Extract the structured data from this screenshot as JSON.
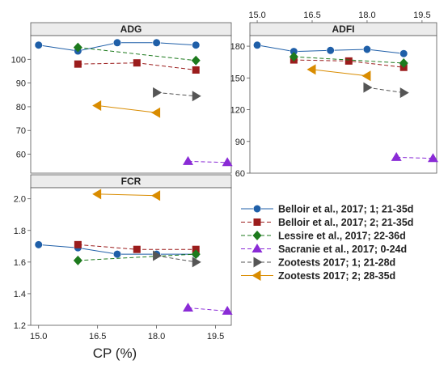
{
  "xlabel": "CP (%)",
  "legend": [
    {
      "name": "Belloir et al., 2017; 1; 21-35d",
      "color": "#1f5fa8",
      "marker": "circle",
      "dash": false
    },
    {
      "name": "Belloir et al., 2017; 2; 21-35d",
      "color": "#9b1c1c",
      "marker": "square",
      "dash": true
    },
    {
      "name": "Lessire et al., 2017; 22-36d",
      "color": "#1d7a1d",
      "marker": "diamond",
      "dash": true
    },
    {
      "name": "Sacranie et al., 2017; 0-24d",
      "color": "#8a2bd6",
      "marker": "triangle-up",
      "dash": true
    },
    {
      "name": "Zootests 2017; 1; 21-28d",
      "color": "#555555",
      "marker": "triangle-right",
      "dash": true
    },
    {
      "name": "Zootests 2017; 2; 28-35d",
      "color": "#d98c00",
      "marker": "triangle-left",
      "dash": false
    }
  ],
  "chart_data": [
    {
      "type": "line",
      "title": "ADG",
      "xlabel": "CP (%)",
      "ylabel": "",
      "xlim": [
        14.8,
        19.9
      ],
      "ylim": [
        52,
        110
      ],
      "xticks": [
        "15.0",
        "16.5",
        "18.0",
        "19.5"
      ],
      "yticks": [
        60,
        70,
        80,
        90,
        100
      ],
      "series": [
        {
          "name": "Belloir et al., 2017; 1; 21-35d",
          "x": [
            15.0,
            16.0,
            17.0,
            18.0,
            19.0
          ],
          "y": [
            106,
            103.5,
            107,
            107,
            106
          ]
        },
        {
          "name": "Belloir et al., 2017; 2; 21-35d",
          "x": [
            16.0,
            17.5,
            19.0
          ],
          "y": [
            98,
            98.5,
            95.5
          ]
        },
        {
          "name": "Lessire et al., 2017; 22-36d",
          "x": [
            16.0,
            19.0
          ],
          "y": [
            105,
            99.5
          ]
        },
        {
          "name": "Sacranie et al., 2017; 0-24d",
          "x": [
            18.8,
            19.8
          ],
          "y": [
            57,
            56.5
          ]
        },
        {
          "name": "Zootests 2017; 1; 21-28d",
          "x": [
            18.0,
            19.0
          ],
          "y": [
            86,
            84.5
          ]
        },
        {
          "name": "Zootests 2017; 2; 28-35d",
          "x": [
            16.5,
            18.0
          ],
          "y": [
            80.5,
            77.5
          ]
        }
      ]
    },
    {
      "type": "line",
      "title": "ADFI",
      "xlabel": "",
      "ylabel": "",
      "xlim": [
        14.8,
        19.9
      ],
      "ylim": [
        60,
        190
      ],
      "xticks": [
        "15.0",
        "16.5",
        "18.0",
        "19.5"
      ],
      "yticks": [
        60,
        90,
        120,
        150,
        180
      ],
      "series": [
        {
          "name": "Belloir et al., 2017; 1; 21-35d",
          "x": [
            15.0,
            16.0,
            17.0,
            18.0,
            19.0
          ],
          "y": [
            181,
            175,
            176,
            177,
            173
          ]
        },
        {
          "name": "Belloir et al., 2017; 2; 21-35d",
          "x": [
            16.0,
            17.5,
            19.0
          ],
          "y": [
            167,
            166,
            160
          ]
        },
        {
          "name": "Lessire et al., 2017; 22-36d",
          "x": [
            16.0,
            19.0
          ],
          "y": [
            170,
            164
          ]
        },
        {
          "name": "Sacranie et al., 2017; 0-24d",
          "x": [
            18.8,
            19.8
          ],
          "y": [
            75,
            74
          ]
        },
        {
          "name": "Zootests 2017; 1; 21-28d",
          "x": [
            18.0,
            19.0
          ],
          "y": [
            141,
            136
          ]
        },
        {
          "name": "Zootests 2017; 2; 28-35d",
          "x": [
            16.5,
            18.0
          ],
          "y": [
            158,
            152
          ]
        }
      ]
    },
    {
      "type": "line",
      "title": "FCR",
      "xlabel": "CP (%)",
      "ylabel": "",
      "xlim": [
        14.8,
        19.9
      ],
      "ylim": [
        1.2,
        2.07
      ],
      "xticks": [
        "15.0",
        "16.5",
        "18.0",
        "19.5"
      ],
      "yticks": [
        "1.2",
        "1.4",
        "1.6",
        "1.8",
        "2.0"
      ],
      "series": [
        {
          "name": "Belloir et al., 2017; 1; 21-35d",
          "x": [
            15.0,
            16.0,
            17.0,
            18.0,
            19.0
          ],
          "y": [
            1.71,
            1.69,
            1.65,
            1.65,
            1.65
          ]
        },
        {
          "name": "Belloir et al., 2017; 2; 21-35d",
          "x": [
            16.0,
            17.5,
            19.0
          ],
          "y": [
            1.71,
            1.68,
            1.68
          ]
        },
        {
          "name": "Lessire et al., 2017; 22-36d",
          "x": [
            16.0,
            19.0
          ],
          "y": [
            1.61,
            1.65
          ]
        },
        {
          "name": "Sacranie et al., 2017; 0-24d",
          "x": [
            18.8,
            19.8
          ],
          "y": [
            1.31,
            1.29
          ]
        },
        {
          "name": "Zootests 2017; 1; 21-28d",
          "x": [
            18.0,
            19.0
          ],
          "y": [
            1.64,
            1.6
          ]
        },
        {
          "name": "Zootests 2017; 2; 28-35d",
          "x": [
            16.5,
            18.0
          ],
          "y": [
            2.03,
            2.02
          ]
        }
      ]
    }
  ]
}
